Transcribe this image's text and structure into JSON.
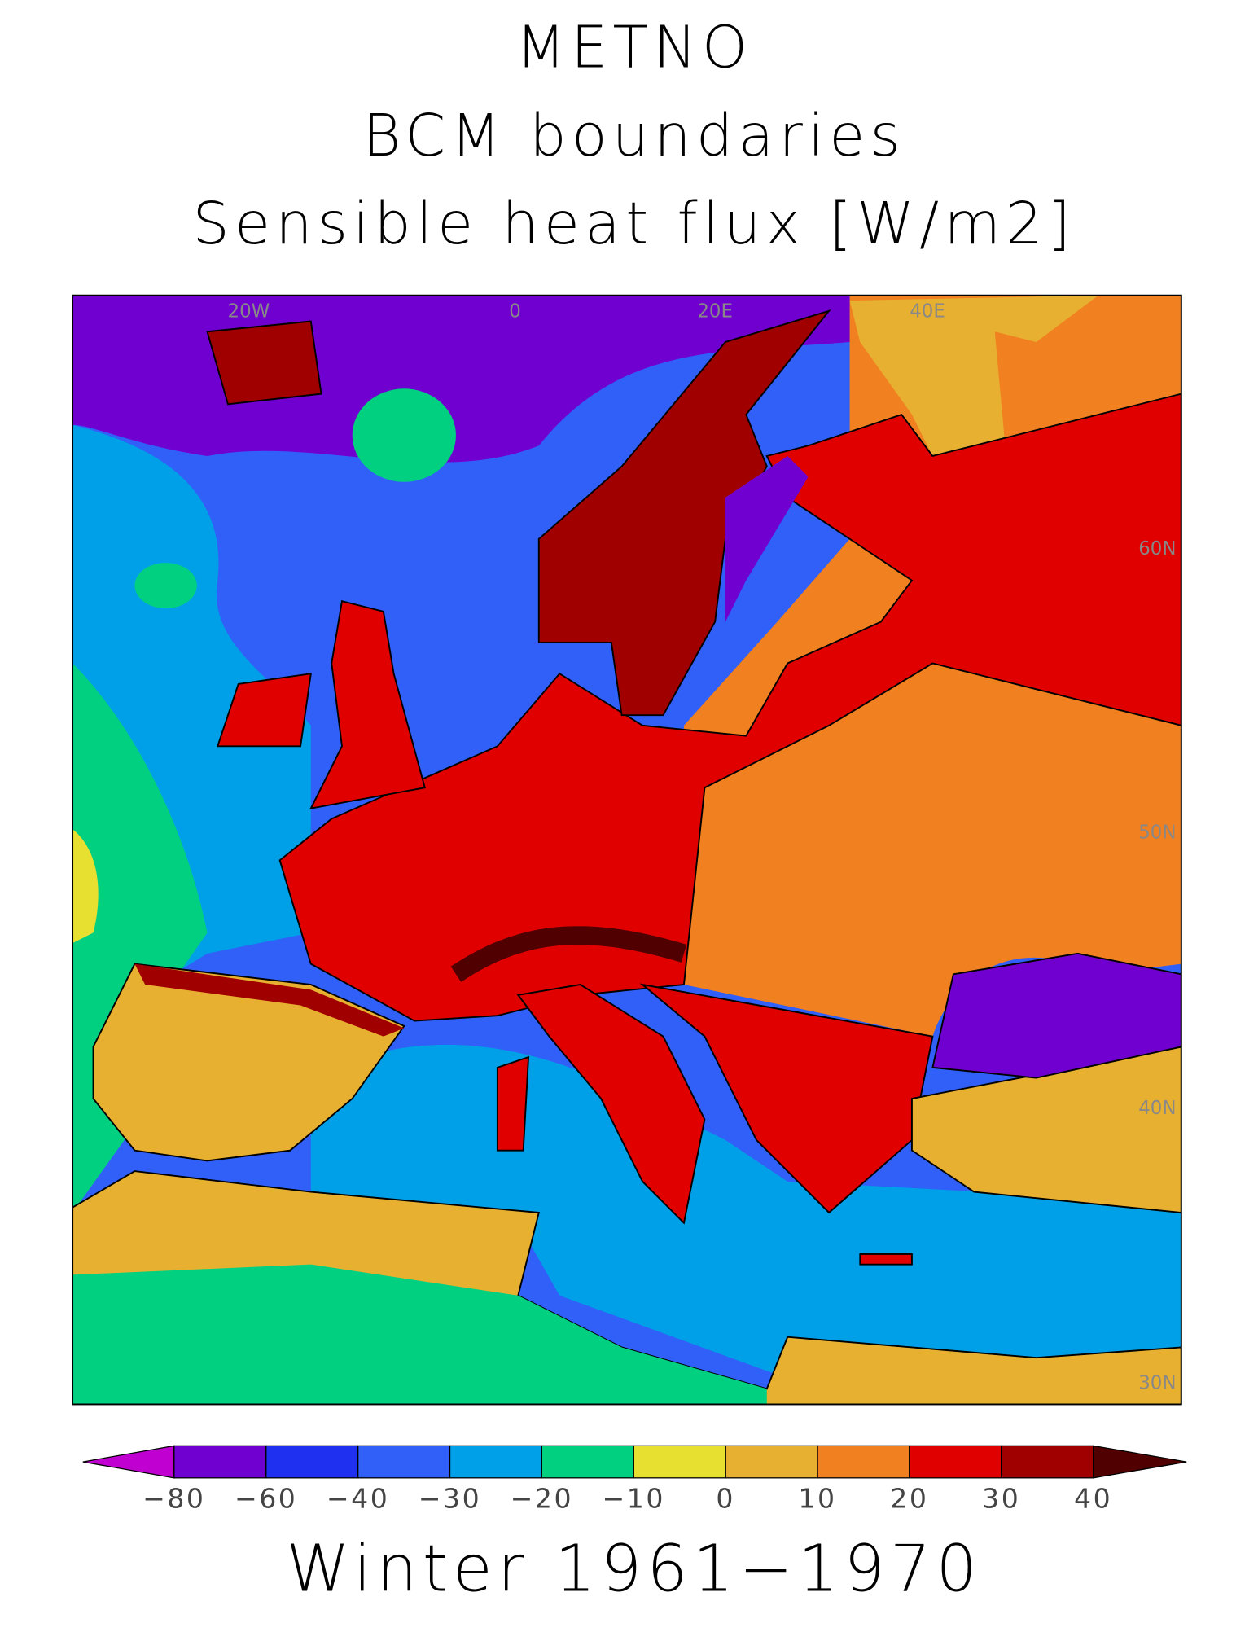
{
  "titles": [
    "METNO",
    "BCM boundaries",
    "Sensible heat flux [W/m2]"
  ],
  "map": {
    "grid_labels": [
      "20W",
      "0",
      "20E",
      "40E",
      "60N",
      "50N",
      "40N",
      "30N"
    ]
  },
  "colorbar": {
    "colors": [
      "#c000d0",
      "#7000d0",
      "#2030f0",
      "#3060f8",
      "#00a0e8",
      "#00d080",
      "#e8e030",
      "#e8b030",
      "#f08020",
      "#e00000",
      "#a00000",
      "#500000"
    ],
    "ticks": [
      {
        "value": -80,
        "label": "−80"
      },
      {
        "value": -60,
        "label": "−60"
      },
      {
        "value": -40,
        "label": "−40"
      },
      {
        "value": -30,
        "label": "−30"
      },
      {
        "value": -20,
        "label": "−20"
      },
      {
        "value": -10,
        "label": "−10"
      },
      0,
      10,
      20,
      30,
      40
    ]
  },
  "footer": "Winter 1961−1970"
}
